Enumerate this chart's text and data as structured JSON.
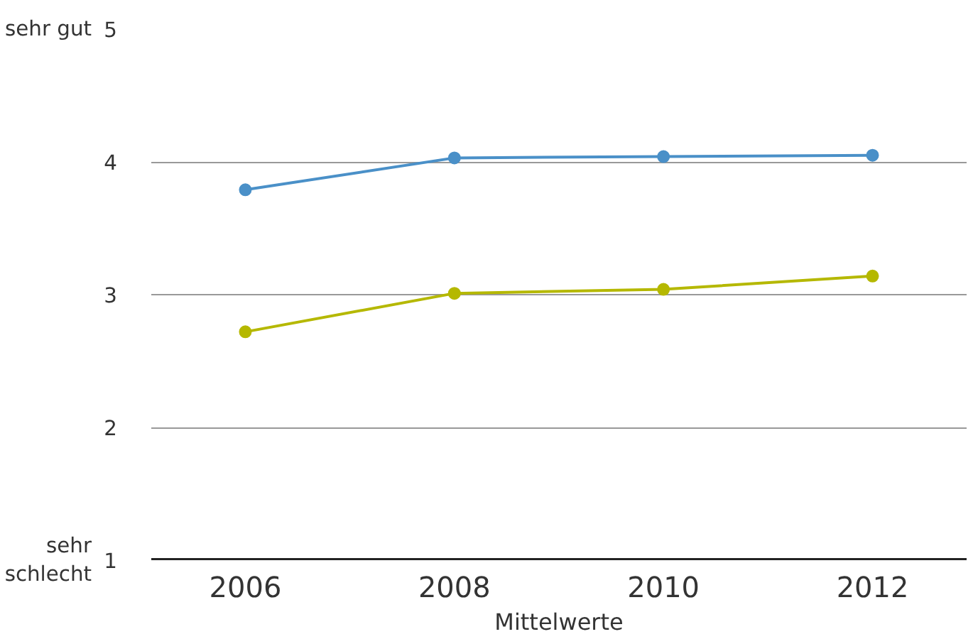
{
  "chart_data": {
    "type": "line",
    "xlabel": "Mittelwerte",
    "categories": [
      "2006",
      "2008",
      "2010",
      "2012"
    ],
    "series": [
      {
        "color": "#4a90c8",
        "values": [
          3.79,
          4.03,
          4.04,
          4.05
        ]
      },
      {
        "color": "#b5b800",
        "values": [
          2.72,
          3.01,
          3.04,
          3.14
        ]
      }
    ],
    "ylim": [
      1,
      5
    ],
    "yticks": [
      1,
      2,
      3,
      4,
      5
    ],
    "grid": "y",
    "marker": "circle",
    "line_style": "solid",
    "annotations": [
      "sehr gut",
      "sehr\nschlecht"
    ]
  }
}
